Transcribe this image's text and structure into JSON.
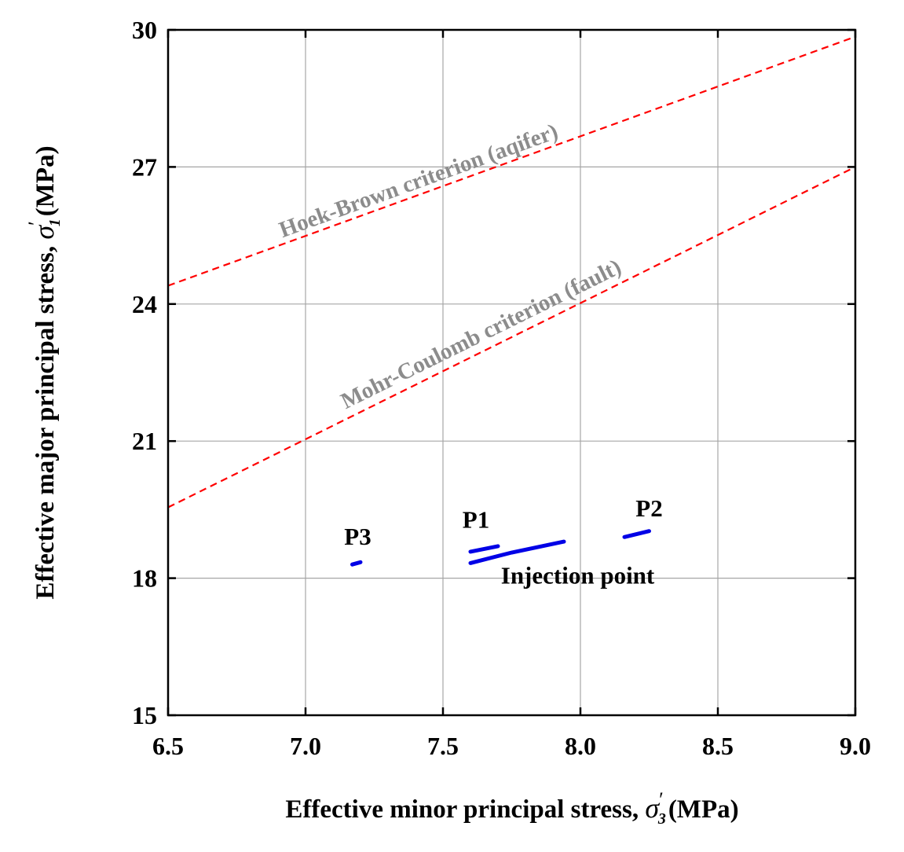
{
  "chart_data": {
    "type": "line",
    "title": "",
    "xlabel": "Effective minor principal stress, σ′3 (MPa)",
    "ylabel": "Effective major principal stress, σ′1 (MPa)",
    "xlabel_text": "Effective minor principal stress,",
    "xlabel_symbol": "σ",
    "xlabel_sub": "3",
    "xlabel_unit": "(MPa)",
    "ylabel_text": "Effective major principal stress,",
    "ylabel_symbol": "σ",
    "ylabel_sub": "1",
    "ylabel_unit": "(MPa)",
    "prime": "′",
    "xlim": [
      6.5,
      9.0
    ],
    "ylim": [
      15,
      30
    ],
    "xticks": [
      6.5,
      7.0,
      7.5,
      8.0,
      8.5,
      9.0
    ],
    "xtick_labels": [
      "6.5",
      "7.0",
      "7.5",
      "8.0",
      "8.5",
      "9.0"
    ],
    "yticks": [
      15,
      18,
      21,
      24,
      27,
      30
    ],
    "ytick_labels": [
      "15",
      "18",
      "21",
      "24",
      "27",
      "30"
    ],
    "grid": true,
    "series": [
      {
        "name": "Hoek-Brown criterion (aqifer)",
        "style": "dashed",
        "color": "#ff0000",
        "x": [
          6.5,
          9.0
        ],
        "y": [
          24.4,
          29.85
        ]
      },
      {
        "name": "Mohr-Coulomb criterion (fault)",
        "style": "dashed",
        "color": "#ff0000",
        "x": [
          6.5,
          9.0
        ],
        "y": [
          19.55,
          27.0
        ]
      },
      {
        "name": "Injection point",
        "style": "solid",
        "color": "#0000e6",
        "x": [
          7.6,
          7.75,
          7.94
        ],
        "y": [
          18.33,
          18.56,
          18.8
        ]
      },
      {
        "name": "P1",
        "style": "solid",
        "color": "#0000e6",
        "x": [
          7.6,
          7.7
        ],
        "y": [
          18.58,
          18.7
        ]
      },
      {
        "name": "P2",
        "style": "solid",
        "color": "#0000e6",
        "x": [
          8.16,
          8.25
        ],
        "y": [
          18.9,
          19.03
        ]
      },
      {
        "name": "P3",
        "style": "solid",
        "color": "#0000e6",
        "x": [
          7.17,
          7.2
        ],
        "y": [
          18.3,
          18.35
        ]
      }
    ],
    "annotations": [
      {
        "text": "Hoek-Brown criterion (aqifer)",
        "x": 7.42,
        "y": 26.55,
        "kind": "curve"
      },
      {
        "text": "Mohr-Coulomb criterion (fault)",
        "x": 7.65,
        "y": 23.2,
        "kind": "curve"
      },
      {
        "text": "P1",
        "x": 7.62,
        "y": 19.1,
        "kind": "point"
      },
      {
        "text": "P2",
        "x": 8.25,
        "y": 19.35,
        "kind": "point"
      },
      {
        "text": "P3",
        "x": 7.19,
        "y": 18.73,
        "kind": "point"
      },
      {
        "text": "Injection point",
        "x": 7.99,
        "y": 17.88,
        "kind": "point"
      }
    ]
  }
}
